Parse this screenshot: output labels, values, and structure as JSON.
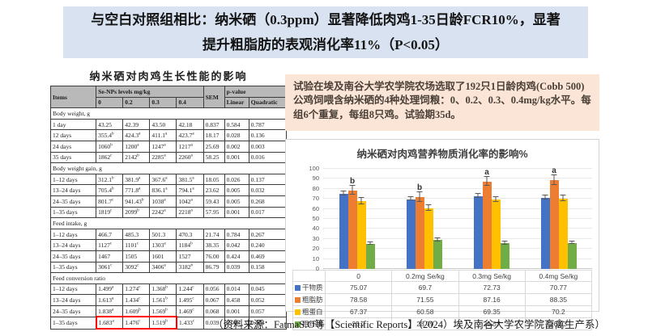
{
  "banner": {
    "text": "与空白对照组相比：纳米硒（0.3ppm）显著降低肉鸡1-35日龄FCR10%，显著提升粗脂肪的表观消化率11%（P<0.05）",
    "bg": "#d8e2f0"
  },
  "growth_table": {
    "title": "纳米硒对肉鸡生长性能的影响",
    "header": {
      "items": "Items",
      "group_label": "Se-NPs levels mg/kg",
      "doses": [
        "0",
        "0.2",
        "0.3",
        "0.4"
      ],
      "sem": "SEM",
      "pvalue_label": "p-value",
      "linear": "Linear",
      "quadratic": "Quadratic"
    },
    "sections": [
      {
        "label": "Body weight, g",
        "rows": [
          {
            "item": "1 day",
            "values": [
              "43.25",
              "42.39",
              "43.50",
              "42.18",
              "0.837",
              "0.584",
              "0.787"
            ]
          },
          {
            "item": "12 days",
            "values": [
              "355.4^b",
              "424.3^a",
              "411.1^a",
              "423.7^a",
              "18.17",
              "0.028",
              "0.136"
            ]
          },
          {
            "item": "24 days",
            "values": [
              "1060^b",
              "1200^a",
              "1247^a",
              "1217^a",
              "25.69",
              "0.002",
              "0.003"
            ]
          },
          {
            "item": "35 days",
            "values": [
              "1862^c",
              "2142^b",
              "2285^a",
              "2260^a",
              "58.25",
              "0.001",
              "0.016"
            ]
          }
        ]
      },
      {
        "label": "Body weight gain, g",
        "rows": [
          {
            "item": "1–12 days",
            "values": [
              "312.1^b",
              "381.9^a",
              "367.6^a",
              "381.5^a",
              "18.05",
              "0.026",
              "0.137"
            ]
          },
          {
            "item": "13–24 days",
            "values": [
              "705.4^b",
              "771.8^a",
              "836.1^a",
              "794.1^a",
              "23.62",
              "0.005",
              "0.032"
            ]
          },
          {
            "item": "24–35 days",
            "values": [
              "801.7^c",
              "941.43^b",
              "1038^a",
              "1042^a",
              "59.43",
              "0.005",
              "0.268"
            ]
          },
          {
            "item": "1–35 days",
            "values": [
              "1819^c",
              "2099^b",
              "2242^a",
              "2218^a",
              "57.95",
              "0.001",
              "0.017"
            ]
          }
        ]
      },
      {
        "label": "Feed intake, g",
        "rows": [
          {
            "item": "1–12 days",
            "values": [
              "466.7",
              "485.3",
              "501.3",
              "470.3",
              "21.74",
              "0.784",
              "0.267"
            ]
          },
          {
            "item": "13–24 days",
            "values": [
              "1127^c",
              "1101^c",
              "1303^a",
              "1184^b",
              "38.35",
              "0.042",
              "0.240"
            ]
          },
          {
            "item": "24–35 days",
            "values": [
              "1467",
              "1505",
              "1601",
              "1527",
              "76.00",
              "0.424",
              "0.469"
            ]
          },
          {
            "item": "1–35 days",
            "values": [
              "3061^c",
              "3092^c",
              "3406^a",
              "3182^b",
              "86.79",
              "0.039",
              "0.158"
            ]
          }
        ]
      },
      {
        "label": "Feed conversion ratio",
        "rows": [
          {
            "item": "1–12 days",
            "values": [
              "1.499^a",
              "1.274^c",
              "1.368^b",
              "1.244^c",
              "0.056",
              "0.014",
              "0.045"
            ]
          },
          {
            "item": "13–24 days",
            "values": [
              "1.613^a",
              "1.434^c",
              "1.561^b",
              "1.495^c",
              "0.067",
              "0.458",
              "0.052"
            ]
          },
          {
            "item": "24–35 days",
            "values": [
              "1.838^a",
              "1.609^b",
              "1.569^b",
              "1.469^c",
              "0.068",
              "0.001",
              "0.057"
            ]
          },
          {
            "item": "1–35 days",
            "values": [
              "1.683^a",
              "1.476^c",
              "1.519^b",
              "1.433^c",
              "0.039",
              "0.008",
              "0.064"
            ]
          }
        ]
      }
    ],
    "highlight": {
      "section_index": 3,
      "row_index": 3,
      "value_cols": [
        0,
        1,
        2
      ],
      "color": "#ff0000"
    }
  },
  "info_box": {
    "text": "试验在埃及南谷大学农学院农场选取了192只1日龄肉鸡(Cobb 500)公鸡饲喂含纳米硒的4种处理饲粮：0、0.2、0.3、0.4mg/kg水平。每组6个重复，每组8只鸡。试验期35d。",
    "bg": "#fbe5d6"
  },
  "chart_data": {
    "type": "bar",
    "title": "纳米硒对肉鸡营养物质消化率的影响%",
    "categories": [
      "0",
      "0.2mg Se/kg",
      "0.3mg Se/kg",
      "0.4mg Se/kg"
    ],
    "series": [
      {
        "name": "干物质",
        "color": "#4472C4",
        "values": [
          "75.07",
          "69.7",
          "72.73",
          "70.77"
        ],
        "errors": [
          1.5,
          1.5,
          1.5,
          1.5
        ]
      },
      {
        "name": "粗脂肪",
        "color": "#ED7D31",
        "values": [
          "78.58",
          "71.55",
          "87.16",
          "88.35"
        ],
        "errors": [
          4,
          4.5,
          4,
          4.5
        ],
        "letters": [
          "b",
          "b",
          "a",
          "a"
        ]
      },
      {
        "name": "粗蛋白",
        "color": "#FFC000",
        "values": [
          "67.37",
          "60.58",
          "69.35",
          "70.2"
        ],
        "errors": [
          2.5,
          2.5,
          2,
          2.5
        ]
      },
      {
        "name": "粗纤维",
        "color": "#70AD47",
        "values": [
          "25.2",
          "28.79",
          "25.57",
          "26.03"
        ],
        "errors": [
          1,
          1,
          1,
          1
        ]
      }
    ],
    "ylim": [
      0,
      100
    ],
    "ytick_step": 10,
    "grid": true,
    "legend_position": "table-left",
    "xlabel": "",
    "ylabel": ""
  },
  "footer": {
    "text": "（资料来源：FatmaS.O等【Scientific Reports】（2024）埃及南谷大学农学院畜禽生产系）"
  }
}
